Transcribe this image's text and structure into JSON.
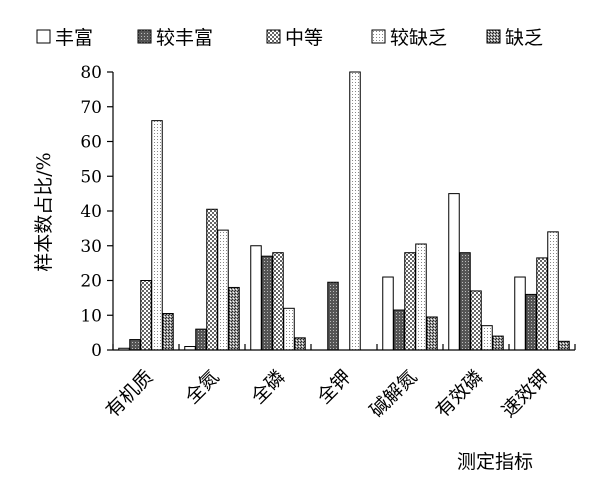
{
  "chart_data": {
    "type": "bar",
    "ylabel": "样本数占比/%",
    "xlabel": "测定指标",
    "ylim": [
      0,
      80
    ],
    "yticks": [
      0,
      10,
      20,
      30,
      40,
      50,
      60,
      70,
      80
    ],
    "legend_position": "top",
    "grid": false,
    "categories": [
      "有机质",
      "全氮",
      "全磷",
      "全钾",
      "碱解氮",
      "有效磷",
      "速效钾"
    ],
    "series": [
      {
        "name": "丰富",
        "pattern": "plain",
        "values": [
          0.5,
          1,
          30,
          0,
          21,
          45,
          21
        ]
      },
      {
        "name": "较丰富",
        "pattern": "dark",
        "values": [
          3,
          6,
          27,
          19.5,
          11.5,
          28,
          16
        ]
      },
      {
        "name": "中等",
        "pattern": "checker",
        "values": [
          20,
          40.5,
          28,
          0,
          28,
          17,
          26.5
        ]
      },
      {
        "name": "较缺乏",
        "pattern": "dots",
        "values": [
          66,
          34.5,
          12,
          80,
          30.5,
          7,
          34
        ]
      },
      {
        "name": "缺乏",
        "pattern": "dense",
        "values": [
          10.5,
          18,
          3.5,
          0,
          9.5,
          4,
          2.5
        ]
      }
    ]
  }
}
